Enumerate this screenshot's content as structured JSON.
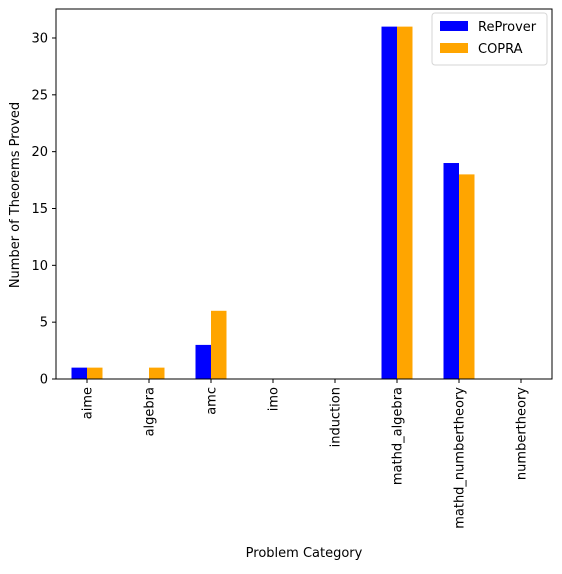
{
  "chart_data": {
    "type": "bar",
    "title": "",
    "xlabel": "Problem Category",
    "ylabel": "Number of Theorems Proved",
    "categories": [
      "aime",
      "algebra",
      "amc",
      "imo",
      "induction",
      "mathd_algebra",
      "mathd_numbertheory",
      "numbertheory"
    ],
    "series": [
      {
        "name": "ReProver",
        "color": "#0000ff",
        "values": [
          1,
          0,
          3,
          0,
          0,
          31,
          19,
          0
        ]
      },
      {
        "name": "COPRA",
        "color": "#ffa500",
        "values": [
          1,
          1,
          6,
          0,
          0,
          31,
          18,
          0
        ]
      }
    ],
    "ylim": [
      0,
      32.55
    ],
    "yticks": [
      0,
      5,
      10,
      15,
      20,
      25,
      30
    ],
    "grid": false,
    "legend_position": "top-right"
  }
}
